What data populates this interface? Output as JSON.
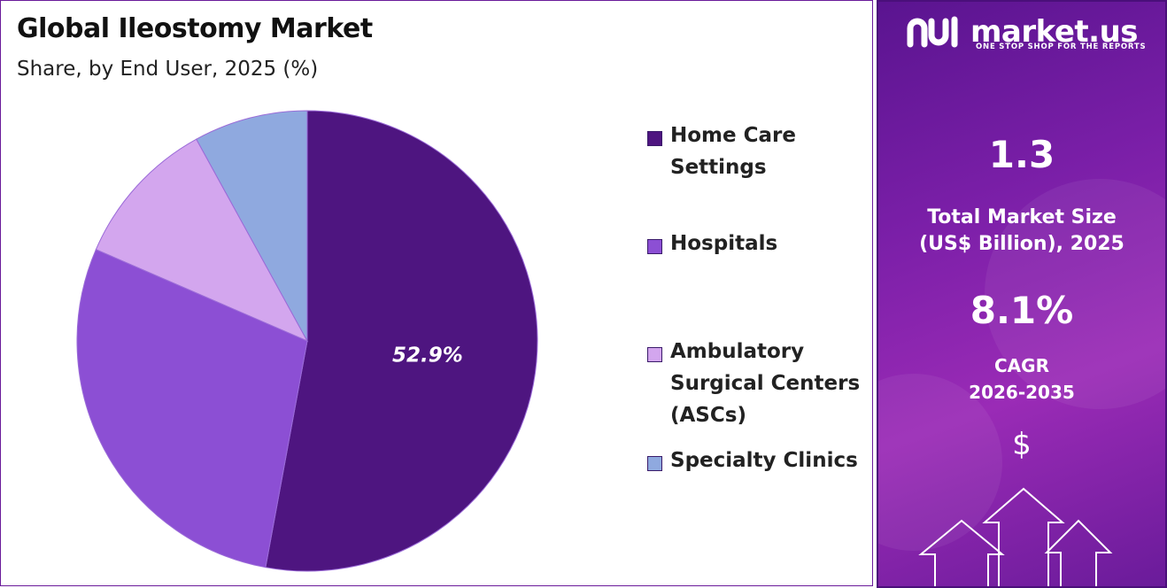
{
  "chart_data": {
    "type": "pie",
    "title": "Global Ileostomy Market",
    "subtitle": "Share, by End User, 2025 (%)",
    "slices": [
      {
        "name": "Home Care Settings",
        "value": 52.9,
        "label": "52.9%",
        "color": "#4e1580"
      },
      {
        "name": "Hospitals",
        "value": 28.6,
        "label": "",
        "color": "#8c4fd4"
      },
      {
        "name": "Ambulatory Surgical Centers (ASCs)",
        "value": 10.5,
        "label": "",
        "color": "#d3a6ee"
      },
      {
        "name": "Specialty Clinics",
        "value": 8.0,
        "label": "",
        "color": "#8fa9df"
      }
    ],
    "legend_position": "right"
  },
  "legend": [
    {
      "lines": [
        "Home Care",
        "Settings"
      ],
      "color": "#4e1580"
    },
    {
      "lines": [
        "Hospitals"
      ],
      "color": "#8c4fd4"
    },
    {
      "lines": [
        "Ambulatory",
        "Surgical Centers",
        "(ASCs)"
      ],
      "color": "#d3a6ee"
    },
    {
      "lines": [
        "Specialty Clinics"
      ],
      "color": "#8fa9df"
    }
  ],
  "brand": {
    "name": "market.us",
    "tagline": "ONE STOP SHOP FOR THE REPORTS",
    "icon": "market-us-logo-icon"
  },
  "stats": {
    "market_size_value": "1.3",
    "market_size_label_1": "Total Market Size",
    "market_size_label_2": "(US$ Billion), 2025",
    "cagr_value": "8.1%",
    "cagr_label_1": "CAGR",
    "cagr_label_2": "2026-2035",
    "dollar_symbol": "$"
  }
}
